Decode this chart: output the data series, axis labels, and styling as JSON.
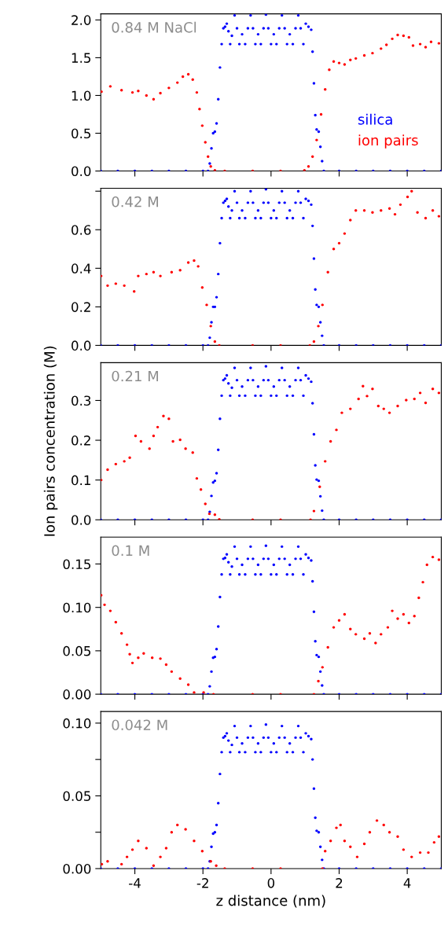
{
  "chart_data": [
    {
      "type": "scatter",
      "title": "0.84 M NaCl",
      "marker": "circle",
      "legend": "lower right",
      "tick_labels": "y",
      "xlim": [
        -5,
        5
      ],
      "xticks": [
        -4,
        -2,
        0,
        2,
        4
      ],
      "ylim": [
        0,
        2.08
      ],
      "yticks": [
        {
          "value": 0,
          "label": "0.0"
        },
        0.5,
        {
          "value": 1,
          "label": "1.0"
        },
        1.5,
        {
          "value": 2,
          "label": "2.0"
        }
      ],
      "series": [
        {
          "name": "silica",
          "color": "#0000ff",
          "x": [
            -5,
            -4.5,
            -4,
            -3.5,
            -3,
            -2.5,
            -2,
            -1.85,
            -1.8,
            -1.75,
            -1.7,
            -1.65,
            -1.6,
            -1.55,
            -1.5,
            -1.45,
            -1.4,
            -1.35,
            -1.3,
            -1.25,
            -1.2,
            -1.15,
            -1.07,
            -1.0,
            -0.93,
            -0.85,
            -0.76,
            -0.68,
            -0.6,
            -0.53,
            -0.46,
            -0.38,
            -0.3,
            -0.22,
            -0.15,
            -0.08,
            0.0,
            0.08,
            0.16,
            0.24,
            0.32,
            0.4,
            0.47,
            0.55,
            0.64,
            0.72,
            0.8,
            0.87,
            0.95,
            1.02,
            1.1,
            1.18,
            1.22,
            1.26,
            1.3,
            1.34,
            1.4,
            1.45,
            1.5,
            1.55,
            2,
            2.5,
            3,
            3.5,
            4,
            4.5,
            5
          ],
          "values": [
            0,
            0,
            0,
            0,
            0,
            0,
            0,
            0,
            0.1,
            0.3,
            0.5,
            0.52,
            0.63,
            0.95,
            1.37,
            1.68,
            1.89,
            1.91,
            1.95,
            1.85,
            1.68,
            1.79,
            2.06,
            1.89,
            1.68,
            1.81,
            1.68,
            1.89,
            2.06,
            1.89,
            1.68,
            1.81,
            1.68,
            1.89,
            2.07,
            1.89,
            1.68,
            1.81,
            1.68,
            1.89,
            2.06,
            1.89,
            1.68,
            1.81,
            1.68,
            1.89,
            2.06,
            1.89,
            1.68,
            1.95,
            1.91,
            1.87,
            1.58,
            1.16,
            0.74,
            0.55,
            0.52,
            0.32,
            0.13,
            0,
            0,
            0,
            0,
            0,
            0,
            0,
            0
          ]
        },
        {
          "name": "ion pairs",
          "color": "#ff0000",
          "x": [
            -4.98,
            -4.72,
            -4.39,
            -4.07,
            -3.9,
            -3.66,
            -3.45,
            -3.25,
            -3.0,
            -2.75,
            -2.59,
            -2.43,
            -2.3,
            -2.18,
            -2.1,
            -2.02,
            -1.93,
            -1.85,
            -1.77,
            -1.65,
            -1.36,
            -0.54,
            0.28,
            0.98,
            1.1,
            1.22,
            1.34,
            1.47,
            1.59,
            1.71,
            1.84,
            2.0,
            2.16,
            2.33,
            2.49,
            2.74,
            2.98,
            3.23,
            3.39,
            3.56,
            3.72,
            3.89,
            4.05,
            4.17,
            4.38,
            4.54,
            4.7,
            4.93
          ],
          "values": [
            1.05,
            1.12,
            1.07,
            1.04,
            1.06,
            1.0,
            0.95,
            1.03,
            1.1,
            1.17,
            1.25,
            1.28,
            1.21,
            1.04,
            0.82,
            0.6,
            0.38,
            0.19,
            0.06,
            0.01,
            0,
            0,
            0,
            0.01,
            0.06,
            0.19,
            0.41,
            0.75,
            1.08,
            1.34,
            1.45,
            1.43,
            1.41,
            1.47,
            1.49,
            1.53,
            1.56,
            1.62,
            1.67,
            1.75,
            1.8,
            1.79,
            1.77,
            1.66,
            1.68,
            1.64,
            1.71,
            1.69
          ]
        }
      ]
    },
    {
      "type": "scatter",
      "title": "0.42 M",
      "marker": "circle",
      "tick_labels": "y",
      "xlim": [
        -5,
        5
      ],
      "xticks": [
        -4,
        -2,
        0,
        2,
        4
      ],
      "ylim": [
        0,
        0.815
      ],
      "yticks": [
        {
          "value": 0,
          "label": "0.0"
        },
        0.2,
        0.4,
        0.6,
        {
          "value": 0.8,
          "label": null
        }
      ],
      "series": [
        {
          "color": "#0000ff",
          "x": [
            -5,
            -4.5,
            -4,
            -3.5,
            -3,
            -2.5,
            -2,
            -1.85,
            -1.8,
            -1.75,
            -1.7,
            -1.65,
            -1.6,
            -1.55,
            -1.5,
            -1.45,
            -1.4,
            -1.35,
            -1.3,
            -1.25,
            -1.2,
            -1.15,
            -1.07,
            -1.0,
            -0.93,
            -0.85,
            -0.76,
            -0.68,
            -0.6,
            -0.53,
            -0.46,
            -0.38,
            -0.3,
            -0.22,
            -0.15,
            -0.08,
            0.0,
            0.08,
            0.16,
            0.24,
            0.32,
            0.4,
            0.47,
            0.55,
            0.64,
            0.72,
            0.8,
            0.87,
            0.95,
            1.02,
            1.1,
            1.18,
            1.22,
            1.26,
            1.3,
            1.34,
            1.4,
            1.45,
            1.5,
            1.55,
            2,
            2.5,
            3,
            3.5,
            4,
            4.5,
            5
          ],
          "values": [
            0,
            0,
            0,
            0,
            0,
            0,
            0,
            0,
            0.04,
            0.12,
            0.2,
            0.2,
            0.25,
            0.37,
            0.53,
            0.66,
            0.74,
            0.75,
            0.76,
            0.72,
            0.66,
            0.7,
            0.8,
            0.74,
            0.66,
            0.7,
            0.66,
            0.74,
            0.8,
            0.74,
            0.66,
            0.7,
            0.66,
            0.74,
            0.81,
            0.74,
            0.66,
            0.7,
            0.66,
            0.74,
            0.8,
            0.74,
            0.66,
            0.7,
            0.66,
            0.74,
            0.8,
            0.74,
            0.66,
            0.76,
            0.75,
            0.73,
            0.62,
            0.45,
            0.29,
            0.21,
            0.2,
            0.12,
            0.05,
            0,
            0,
            0,
            0,
            0,
            0,
            0,
            0
          ]
        },
        {
          "color": "#ff0000",
          "x": [
            -4.99,
            -4.8,
            -4.56,
            -4.31,
            -4.02,
            -3.9,
            -3.66,
            -3.45,
            -3.25,
            -2.92,
            -2.67,
            -2.43,
            -2.26,
            -2.14,
            -2.02,
            -1.89,
            -1.77,
            -1.65,
            -1.52,
            -0.54,
            0.28,
            1.14,
            1.26,
            1.39,
            1.51,
            1.67,
            1.84,
            2.0,
            2.16,
            2.33,
            2.49,
            2.74,
            2.98,
            3.23,
            3.48,
            3.64,
            3.8,
            4.01,
            4.13,
            4.3,
            4.54,
            4.75,
            4.93
          ],
          "values": [
            0.36,
            0.31,
            0.32,
            0.31,
            0.28,
            0.36,
            0.37,
            0.38,
            0.36,
            0.38,
            0.39,
            0.43,
            0.44,
            0.41,
            0.3,
            0.21,
            0.1,
            0.02,
            0,
            0,
            0,
            0,
            0.02,
            0.1,
            0.21,
            0.38,
            0.5,
            0.53,
            0.58,
            0.65,
            0.7,
            0.7,
            0.69,
            0.7,
            0.71,
            0.68,
            0.73,
            0.77,
            0.8,
            0.69,
            0.66,
            0.7,
            0.67
          ]
        }
      ]
    },
    {
      "type": "scatter",
      "title": "0.21 M",
      "marker": "circle",
      "ylabel": "Ion pairs concentration (M)",
      "tick_labels": "y",
      "xlim": [
        -5,
        5
      ],
      "xticks": [
        -4,
        -2,
        0,
        2,
        4
      ],
      "ylim": [
        0,
        0.395
      ],
      "yticks": [
        {
          "value": 0,
          "label": "0.0"
        },
        0.1,
        0.2,
        0.3
      ],
      "series": [
        {
          "color": "#0000ff",
          "x": [
            -5,
            -4.5,
            -4,
            -3.5,
            -3,
            -2.5,
            -2,
            -1.85,
            -1.8,
            -1.75,
            -1.7,
            -1.65,
            -1.6,
            -1.55,
            -1.5,
            -1.45,
            -1.4,
            -1.35,
            -1.3,
            -1.25,
            -1.2,
            -1.15,
            -1.07,
            -1.0,
            -0.93,
            -0.85,
            -0.76,
            -0.68,
            -0.6,
            -0.53,
            -0.46,
            -0.38,
            -0.3,
            -0.22,
            -0.15,
            -0.08,
            0.0,
            0.08,
            0.16,
            0.24,
            0.32,
            0.4,
            0.47,
            0.55,
            0.64,
            0.72,
            0.8,
            0.87,
            0.95,
            1.02,
            1.1,
            1.18,
            1.22,
            1.26,
            1.3,
            1.34,
            1.4,
            1.45,
            1.5,
            1.55,
            2,
            2.5,
            3,
            3.5,
            4,
            4.5,
            5
          ],
          "values": [
            0,
            0,
            0,
            0,
            0,
            0,
            0,
            0,
            0.02,
            0.06,
            0.094,
            0.098,
            0.117,
            0.176,
            0.254,
            0.312,
            0.351,
            0.355,
            0.363,
            0.343,
            0.312,
            0.332,
            0.382,
            0.351,
            0.312,
            0.335,
            0.312,
            0.351,
            0.382,
            0.351,
            0.312,
            0.335,
            0.312,
            0.351,
            0.386,
            0.351,
            0.312,
            0.335,
            0.312,
            0.351,
            0.382,
            0.351,
            0.312,
            0.335,
            0.312,
            0.351,
            0.382,
            0.351,
            0.312,
            0.363,
            0.355,
            0.347,
            0.293,
            0.215,
            0.137,
            0.101,
            0.098,
            0.059,
            0.023,
            0,
            0,
            0,
            0,
            0,
            0,
            0,
            0
          ]
        },
        {
          "color": "#ff0000",
          "x": [
            -4.99,
            -4.8,
            -4.56,
            -4.31,
            -4.15,
            -3.98,
            -3.82,
            -3.57,
            -3.45,
            -3.33,
            -3.16,
            -3.0,
            -2.88,
            -2.67,
            -2.51,
            -2.3,
            -2.18,
            -2.06,
            -1.93,
            -1.81,
            -1.65,
            -1.52,
            -0.54,
            0.28,
            1.16,
            1.26,
            1.43,
            1.59,
            1.75,
            1.92,
            2.08,
            2.33,
            2.57,
            2.7,
            2.82,
            2.98,
            3.15,
            3.31,
            3.48,
            3.72,
            3.97,
            4.21,
            4.38,
            4.54,
            4.75,
            4.93
          ],
          "values": [
            0.1,
            0.126,
            0.14,
            0.147,
            0.156,
            0.211,
            0.197,
            0.179,
            0.211,
            0.233,
            0.261,
            0.254,
            0.197,
            0.201,
            0.179,
            0.169,
            0.104,
            0.076,
            0.04,
            0.015,
            0.013,
            0.001,
            0,
            0,
            0,
            0.022,
            0.083,
            0.147,
            0.197,
            0.226,
            0.269,
            0.279,
            0.304,
            0.336,
            0.311,
            0.329,
            0.286,
            0.279,
            0.269,
            0.286,
            0.301,
            0.304,
            0.319,
            0.294,
            0.329,
            0.319
          ]
        }
      ]
    },
    {
      "type": "scatter",
      "title": "0.1 M",
      "marker": "circle",
      "tick_labels": "y",
      "xlim": [
        -5,
        5
      ],
      "xticks": [
        -4,
        -2,
        0,
        2,
        4
      ],
      "ylim": [
        0,
        0.181
      ],
      "yticks": [
        {
          "value": 0,
          "label": "0.00"
        },
        0.05,
        {
          "value": 0.1,
          "label": "0.10"
        },
        0.15
      ],
      "series": [
        {
          "color": "#0000ff",
          "x": [
            -5,
            -4.5,
            -4,
            -3.5,
            -3,
            -2.5,
            -2,
            -1.85,
            -1.8,
            -1.75,
            -1.7,
            -1.65,
            -1.6,
            -1.55,
            -1.5,
            -1.45,
            -1.4,
            -1.35,
            -1.3,
            -1.25,
            -1.2,
            -1.15,
            -1.07,
            -1.0,
            -0.93,
            -0.85,
            -0.76,
            -0.68,
            -0.6,
            -0.53,
            -0.46,
            -0.38,
            -0.3,
            -0.22,
            -0.15,
            -0.08,
            0.0,
            0.08,
            0.16,
            0.24,
            0.32,
            0.4,
            0.47,
            0.55,
            0.64,
            0.72,
            0.8,
            0.87,
            0.95,
            1.02,
            1.1,
            1.18,
            1.22,
            1.26,
            1.3,
            1.34,
            1.4,
            1.45,
            1.5,
            1.55,
            2,
            2.5,
            3,
            3.5,
            4,
            4.5,
            5
          ],
          "values": [
            0,
            0,
            0,
            0,
            0,
            0,
            0,
            0,
            0.009,
            0.026,
            0.042,
            0.043,
            0.052,
            0.078,
            0.112,
            0.138,
            0.156,
            0.157,
            0.161,
            0.152,
            0.138,
            0.147,
            0.17,
            0.156,
            0.138,
            0.149,
            0.138,
            0.156,
            0.17,
            0.156,
            0.138,
            0.149,
            0.138,
            0.156,
            0.171,
            0.156,
            0.138,
            0.149,
            0.138,
            0.156,
            0.17,
            0.156,
            0.138,
            0.149,
            0.138,
            0.156,
            0.17,
            0.156,
            0.138,
            0.161,
            0.157,
            0.154,
            0.13,
            0.095,
            0.061,
            0.045,
            0.043,
            0.026,
            0.01,
            0,
            0,
            0,
            0,
            0,
            0,
            0,
            0
          ]
        },
        {
          "color": "#ff0000",
          "x": [
            -4.99,
            -4.89,
            -4.72,
            -4.56,
            -4.39,
            -4.23,
            -4.15,
            -4.07,
            -3.9,
            -3.74,
            -3.49,
            -3.25,
            -3.08,
            -2.92,
            -2.67,
            -2.43,
            -2.26,
            -1.98,
            -1.69,
            -0.54,
            0.28,
            1.26,
            1.39,
            1.51,
            1.67,
            1.84,
            2.0,
            2.16,
            2.33,
            2.49,
            2.74,
            2.9,
            3.07,
            3.23,
            3.43,
            3.56,
            3.72,
            3.89,
            4.05,
            4.21,
            4.34,
            4.46,
            4.58,
            4.75,
            4.93
          ],
          "values": [
            0.114,
            0.103,
            0.096,
            0.083,
            0.07,
            0.057,
            0.046,
            0.036,
            0.042,
            0.047,
            0.042,
            0.041,
            0.034,
            0.026,
            0.018,
            0.011,
            0.002,
            0.002,
            0,
            0,
            0,
            0,
            0.015,
            0.031,
            0.054,
            0.077,
            0.085,
            0.092,
            0.075,
            0.069,
            0.064,
            0.07,
            0.059,
            0.069,
            0.077,
            0.096,
            0.087,
            0.092,
            0.082,
            0.09,
            0.111,
            0.129,
            0.149,
            0.158,
            0.155
          ]
        }
      ]
    },
    {
      "type": "scatter",
      "title": "0.042 M",
      "marker": "circle",
      "xlabel": "z distance (nm)",
      "xlim": [
        -5,
        5
      ],
      "xticks": [
        -4,
        -2,
        0,
        2,
        4
      ],
      "ylim": [
        0,
        0.108
      ],
      "yticks": [
        {
          "value": 0,
          "label": "0.00"
        },
        {
          "value": 0.025,
          "label": null
        },
        0.05,
        {
          "value": 0.075,
          "label": null
        },
        {
          "value": 0.1,
          "label": "0.10"
        }
      ],
      "series": [
        {
          "color": "#0000ff",
          "x": [
            -5,
            -4.5,
            -4,
            -3.5,
            -3,
            -2.5,
            -2,
            -1.85,
            -1.8,
            -1.75,
            -1.7,
            -1.65,
            -1.6,
            -1.55,
            -1.5,
            -1.45,
            -1.4,
            -1.35,
            -1.3,
            -1.25,
            -1.2,
            -1.15,
            -1.07,
            -1.0,
            -0.93,
            -0.85,
            -0.76,
            -0.68,
            -0.6,
            -0.53,
            -0.46,
            -0.38,
            -0.3,
            -0.22,
            -0.15,
            -0.08,
            0.0,
            0.08,
            0.16,
            0.24,
            0.32,
            0.4,
            0.47,
            0.55,
            0.64,
            0.72,
            0.8,
            0.87,
            0.95,
            1.02,
            1.1,
            1.18,
            1.22,
            1.26,
            1.3,
            1.34,
            1.4,
            1.45,
            1.5,
            1.55,
            2,
            2.5,
            3,
            3.5,
            4,
            4.5,
            5
          ],
          "values": [
            0,
            0,
            0,
            0,
            0,
            0,
            0,
            0,
            0.005,
            0.015,
            0.024,
            0.025,
            0.03,
            0.045,
            0.065,
            0.08,
            0.09,
            0.091,
            0.093,
            0.088,
            0.08,
            0.085,
            0.098,
            0.09,
            0.08,
            0.086,
            0.08,
            0.09,
            0.098,
            0.09,
            0.08,
            0.086,
            0.08,
            0.09,
            0.099,
            0.09,
            0.08,
            0.086,
            0.08,
            0.09,
            0.098,
            0.09,
            0.08,
            0.086,
            0.08,
            0.09,
            0.098,
            0.09,
            0.08,
            0.093,
            0.091,
            0.089,
            0.075,
            0.055,
            0.035,
            0.026,
            0.025,
            0.015,
            0.006,
            0,
            0,
            0,
            0,
            0,
            0,
            0,
            0
          ]
        },
        {
          "color": "#ff0000",
          "x": [
            -4.97,
            -4.8,
            -4.39,
            -4.23,
            -4.07,
            -3.9,
            -3.66,
            -3.45,
            -3.25,
            -3.08,
            -2.92,
            -2.75,
            -2.51,
            -2.26,
            -2.02,
            -1.77,
            -1.61,
            -1.36,
            -0.54,
            0.28,
            1.51,
            1.59,
            1.75,
            1.92,
            2.04,
            2.16,
            2.33,
            2.53,
            2.74,
            2.9,
            3.11,
            3.31,
            3.48,
            3.72,
            3.89,
            4.13,
            4.38,
            4.62,
            4.79,
            4.93
          ],
          "values": [
            0.003,
            0.005,
            0.003,
            0.008,
            0.013,
            0.019,
            0.014,
            0.002,
            0.008,
            0.014,
            0.025,
            0.03,
            0.027,
            0.019,
            0.012,
            0.005,
            0.002,
            0,
            0,
            0,
            0,
            0.012,
            0.019,
            0.028,
            0.03,
            0.019,
            0.015,
            0.008,
            0.017,
            0.025,
            0.033,
            0.03,
            0.025,
            0.022,
            0.013,
            0.008,
            0.011,
            0.011,
            0.018,
            0.022
          ]
        }
      ]
    }
  ]
}
